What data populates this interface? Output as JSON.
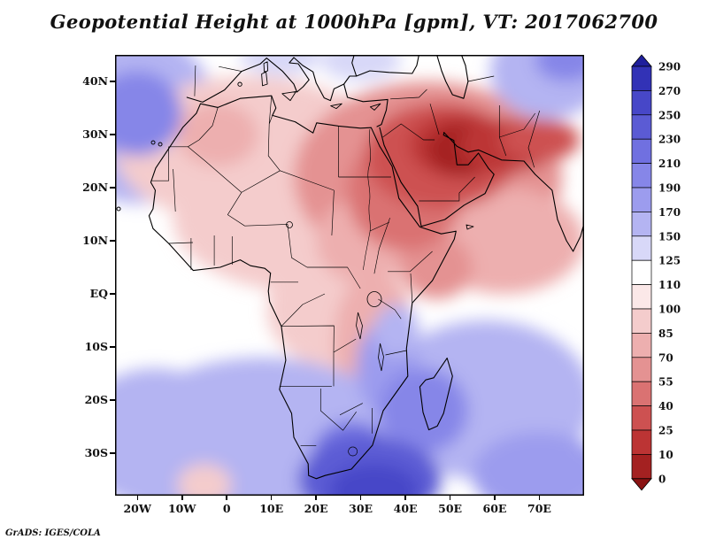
{
  "title": "Geopotential Height at 1000hPa [gpm], VT: 2017062700",
  "credit": "GrADS: IGES/COLA",
  "chart_data": {
    "type": "heatmap",
    "subtype": "filled-contour-geographic-map",
    "title": "Geopotential Height at 1000hPa [gpm], VT: 2017062700",
    "variable": "Geopotential Height",
    "pressure_level": "1000hPa",
    "units": "gpm",
    "valid_time_label": "VT: 2017062700",
    "region": "Africa, Middle East and surrounding oceans",
    "grid": "off",
    "x_axis": {
      "tick_labels": [
        "20W",
        "10W",
        "0",
        "10E",
        "20E",
        "30E",
        "40E",
        "50E",
        "60E",
        "70E"
      ],
      "tick_lons": [
        -20,
        -10,
        0,
        10,
        20,
        30,
        40,
        50,
        60,
        70
      ],
      "lon_range": [
        -25,
        80
      ]
    },
    "y_axis": {
      "tick_labels": [
        "40N",
        "30N",
        "20N",
        "10N",
        "EQ",
        "10S",
        "20S",
        "30S"
      ],
      "tick_lats": [
        40,
        30,
        20,
        10,
        0,
        -10,
        -20,
        -30
      ],
      "lat_range": [
        -38,
        45
      ]
    },
    "colorbar": {
      "position": "right",
      "orientation": "vertical",
      "levels": [
        290,
        270,
        250,
        230,
        210,
        190,
        170,
        150,
        125,
        110,
        100,
        85,
        70,
        55,
        40,
        25,
        10,
        0
      ],
      "colors_top_to_bottom": [
        "#1f1f9c",
        "#3232b6",
        "#4747c8",
        "#5b5bd4",
        "#7070e0",
        "#8686e8",
        "#9c9cee",
        "#b4b4f2",
        "#d8d8f8",
        "#ffffff",
        "#fbe8e8",
        "#f4cccc",
        "#edafaf",
        "#e49292",
        "#da7272",
        "#cd5151",
        "#bc3434",
        "#a42121",
        "#8a1313"
      ]
    },
    "field_estimates_gpm": [
      {
        "lon": -20,
        "lat": 33,
        "rx_deg": 18,
        "ry_deg": 16,
        "value": 160
      },
      {
        "lon": 5,
        "lat": 27,
        "rx_deg": 30,
        "ry_deg": 14,
        "value": 90
      },
      {
        "lon": 20,
        "lat": 14,
        "rx_deg": 32,
        "ry_deg": 14,
        "value": 100
      },
      {
        "lon": 45,
        "lat": 22,
        "rx_deg": 30,
        "ry_deg": 18,
        "value": 70
      },
      {
        "lon": 62,
        "lat": 10,
        "rx_deg": 18,
        "ry_deg": 10,
        "value": 85
      },
      {
        "lon": 25,
        "lat": -3,
        "rx_deg": 16,
        "ry_deg": 11,
        "value": 95
      },
      {
        "lon": 33,
        "lat": -9,
        "rx_deg": 9,
        "ry_deg": 13,
        "value": 85
      },
      {
        "lon": 8,
        "lat": -30,
        "rx_deg": 34,
        "ry_deg": 18,
        "value": 170
      },
      {
        "lon": -16,
        "lat": -27,
        "rx_deg": 18,
        "ry_deg": 13,
        "value": 165
      },
      {
        "lon": 58,
        "lat": -20,
        "rx_deg": 24,
        "ry_deg": 15,
        "value": 160
      },
      {
        "lon": 72,
        "lat": 42,
        "rx_deg": 13,
        "ry_deg": 9,
        "value": 155
      },
      {
        "lon": 30,
        "lat": 44,
        "rx_deg": 9,
        "ry_deg": 4,
        "value": 140
      },
      {
        "lon": 12,
        "lat": 45,
        "rx_deg": 9,
        "ry_deg": 4,
        "value": 150
      },
      {
        "lon": -20,
        "lat": 34,
        "rx_deg": 10,
        "ry_deg": 8,
        "value": 195
      },
      {
        "lon": -2,
        "lat": 30,
        "rx_deg": 9,
        "ry_deg": 6,
        "value": 82
      },
      {
        "lon": 30,
        "lat": 10,
        "rx_deg": 10,
        "ry_deg": 8,
        "value": 75
      },
      {
        "lon": 47,
        "lat": 5,
        "rx_deg": 8,
        "ry_deg": 6,
        "value": 62
      },
      {
        "lon": 40,
        "lat": 19,
        "rx_deg": 13,
        "ry_deg": 11,
        "value": 50
      },
      {
        "lon": 48,
        "lat": 26,
        "rx_deg": 17,
        "ry_deg": 10,
        "value": 40
      },
      {
        "lon": 52,
        "lat": 28,
        "rx_deg": 11,
        "ry_deg": 6,
        "value": 22
      },
      {
        "lon": 53,
        "lat": 27,
        "rx_deg": 8,
        "ry_deg": 5,
        "value": 5
      },
      {
        "lon": 63,
        "lat": 28,
        "rx_deg": 11,
        "ry_deg": 5,
        "value": 18
      },
      {
        "lon": 70,
        "lat": 29,
        "rx_deg": 9,
        "ry_deg": 4,
        "value": 35
      },
      {
        "lon": 36,
        "lat": -14,
        "rx_deg": 7,
        "ry_deg": 9,
        "value": 185
      },
      {
        "lon": 38,
        "lat": -7,
        "rx_deg": 5,
        "ry_deg": 5,
        "value": 155
      },
      {
        "lon": 44,
        "lat": -22,
        "rx_deg": 10,
        "ry_deg": 8,
        "value": 195
      },
      {
        "lon": 28,
        "lat": -31,
        "rx_deg": 9,
        "ry_deg": 7,
        "value": 220
      },
      {
        "lon": 32,
        "lat": -35,
        "rx_deg": 16,
        "ry_deg": 8,
        "value": 235
      },
      {
        "lon": 33,
        "lat": -37,
        "rx_deg": 10,
        "ry_deg": 5,
        "value": 255
      },
      {
        "lon": 70,
        "lat": -34,
        "rx_deg": 15,
        "ry_deg": 8,
        "value": 190
      },
      {
        "lon": -5,
        "lat": -36,
        "rx_deg": 6,
        "ry_deg": 4,
        "value": 95
      },
      {
        "lon": 76,
        "lat": 44,
        "rx_deg": 7,
        "ry_deg": 4,
        "value": 195
      }
    ]
  }
}
